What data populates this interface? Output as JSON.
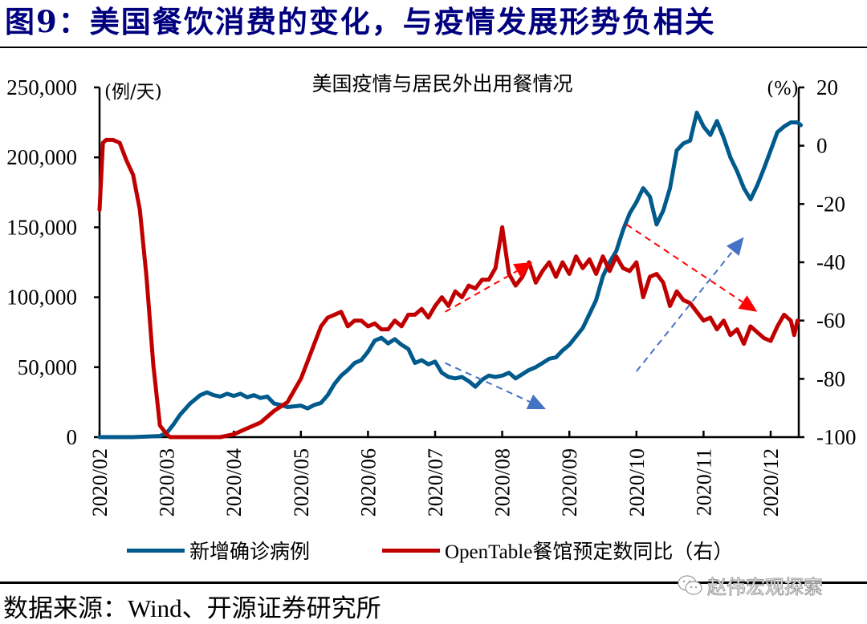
{
  "figure": {
    "title": "图9：美国餐饮消费的变化，与疫情发展形势负相关",
    "source": "数据来源：Wind、开源证券研究所",
    "watermark": "赵伟宏观探索"
  },
  "colors": {
    "title": "#00007F",
    "cases_line": "#005A8C",
    "opentable_line": "#C00000",
    "arrow_red": "#FF0000",
    "arrow_blue": "#4472C4"
  },
  "chart_data": {
    "type": "line",
    "title": "美国疫情与居民外出用餐情况",
    "xlabel": "",
    "ylabel_left": "(例/天)",
    "ylabel_right": "(%)",
    "ylim_left": [
      0,
      250000
    ],
    "ylim_right": [
      -100,
      20
    ],
    "yticks_left": [
      "250,000",
      "200,000",
      "150,000",
      "100,000",
      "50,000",
      "0"
    ],
    "yticks_right": [
      "20",
      "0",
      "-20",
      "-40",
      "-60",
      "-80",
      "-100"
    ],
    "categories": [
      "2020/02",
      "2020/03",
      "2020/04",
      "2020/05",
      "2020/06",
      "2020/07",
      "2020/08",
      "2020/09",
      "2020/10",
      "2020/11",
      "2020/12"
    ],
    "x_unit": "month index from 2020/02 (0 = 2020/02/01)",
    "x_max": 10.45,
    "legend_position": "bottom",
    "grid": false,
    "series": [
      {
        "name": "新增确诊病例",
        "axis": "left",
        "x": [
          0,
          0.5,
          0.9,
          1.0,
          1.1,
          1.2,
          1.35,
          1.5,
          1.6,
          1.7,
          1.8,
          1.9,
          2.0,
          2.1,
          2.2,
          2.3,
          2.4,
          2.5,
          2.6,
          2.7,
          2.8,
          2.9,
          3.0,
          3.1,
          3.2,
          3.3,
          3.4,
          3.5,
          3.6,
          3.7,
          3.8,
          3.9,
          4.0,
          4.1,
          4.2,
          4.3,
          4.4,
          4.5,
          4.6,
          4.7,
          4.8,
          4.9,
          5.0,
          5.1,
          5.2,
          5.3,
          5.4,
          5.5,
          5.6,
          5.7,
          5.8,
          5.9,
          6.0,
          6.1,
          6.2,
          6.3,
          6.4,
          6.5,
          6.6,
          6.7,
          6.8,
          6.9,
          7.0,
          7.1,
          7.2,
          7.3,
          7.4,
          7.5,
          7.6,
          7.7,
          7.8,
          7.9,
          8.0,
          8.1,
          8.2,
          8.3,
          8.4,
          8.5,
          8.6,
          8.7,
          8.8,
          8.9,
          9.0,
          9.1,
          9.2,
          9.3,
          9.4,
          9.5,
          9.6,
          9.7,
          9.8,
          9.9,
          10.0,
          10.1,
          10.2,
          10.3,
          10.4,
          10.45
        ],
        "values": [
          0,
          0,
          800,
          3000,
          9000,
          16000,
          24000,
          30000,
          32000,
          30000,
          29000,
          31000,
          29500,
          31000,
          28500,
          30000,
          28000,
          29000,
          24000,
          23000,
          21500,
          22000,
          22500,
          20500,
          23000,
          24500,
          30000,
          38000,
          44000,
          48000,
          53000,
          55000,
          61000,
          69000,
          71000,
          67000,
          70000,
          66000,
          63000,
          53000,
          55000,
          52000,
          54000,
          46000,
          43000,
          42000,
          43000,
          40000,
          36000,
          41000,
          44000,
          43000,
          44000,
          46000,
          42000,
          45000,
          48000,
          50000,
          53000,
          56000,
          57000,
          62000,
          66000,
          72000,
          78000,
          88000,
          98000,
          115000,
          125000,
          133000,
          148000,
          160000,
          168000,
          178000,
          172000,
          152000,
          162000,
          178000,
          205000,
          210000,
          212000,
          232000,
          222000,
          216000,
          226000,
          214000,
          200000,
          190000,
          178000,
          170000,
          180000,
          192000,
          205000,
          218000,
          222000,
          225000,
          225000,
          223000
        ],
        "color": "#005A8C"
      },
      {
        "name": "OpenTable餐馆预定数同比（右）",
        "axis": "right",
        "x": [
          0,
          0.05,
          0.1,
          0.2,
          0.3,
          0.4,
          0.5,
          0.6,
          0.7,
          0.8,
          0.9,
          1.0,
          1.05,
          1.1,
          1.2,
          1.5,
          1.8,
          2.0,
          2.2,
          2.4,
          2.6,
          2.8,
          2.9,
          3.0,
          3.1,
          3.2,
          3.3,
          3.4,
          3.5,
          3.6,
          3.7,
          3.8,
          3.9,
          4.0,
          4.1,
          4.2,
          4.3,
          4.4,
          4.5,
          4.6,
          4.7,
          4.8,
          4.9,
          5.0,
          5.1,
          5.2,
          5.3,
          5.4,
          5.5,
          5.6,
          5.7,
          5.8,
          5.9,
          6.0,
          6.1,
          6.2,
          6.3,
          6.4,
          6.5,
          6.6,
          6.7,
          6.8,
          6.9,
          7.0,
          7.1,
          7.2,
          7.3,
          7.4,
          7.5,
          7.6,
          7.7,
          7.8,
          7.9,
          8.0,
          8.1,
          8.2,
          8.3,
          8.4,
          8.5,
          8.6,
          8.7,
          8.8,
          8.9,
          9.0,
          9.1,
          9.2,
          9.3,
          9.4,
          9.5,
          9.6,
          9.7,
          9.8,
          9.9,
          10.0,
          10.1,
          10.2,
          10.3,
          10.35,
          10.4
        ],
        "values": [
          -22,
          1,
          2,
          2,
          1,
          -5,
          -10,
          -22,
          -45,
          -75,
          -96,
          -99,
          -100,
          -100,
          -100,
          -100,
          -100,
          -99,
          -97,
          -95,
          -91,
          -88,
          -84,
          -80,
          -74,
          -68,
          -62,
          -59,
          -58,
          -57,
          -62,
          -60,
          -60,
          -62,
          -61,
          -63,
          -63,
          -60,
          -62,
          -58,
          -58,
          -56,
          -59,
          -55,
          -52,
          -55,
          -50,
          -52,
          -48,
          -49,
          -46,
          -46,
          -42,
          -28,
          -44,
          -48,
          -45,
          -40,
          -47,
          -43,
          -40,
          -45,
          -40,
          -44,
          -38,
          -42,
          -39,
          -44,
          -38,
          -43,
          -38,
          -42,
          -43,
          -40,
          -52,
          -45,
          -44,
          -47,
          -55,
          -50,
          -53,
          -54,
          -57,
          -60,
          -59,
          -63,
          -60,
          -65,
          -63,
          -68,
          -62,
          -64,
          -66,
          -67,
          -62,
          -58,
          -60,
          -65,
          -60
        ],
        "color": "#C00000"
      }
    ],
    "annotations": [
      {
        "type": "dashed-arrow",
        "color": "#FF0000",
        "from": [
          5.15,
          -57
        ],
        "to": [
          6.45,
          -40
        ],
        "axis": "right"
      },
      {
        "type": "dashed-arrow",
        "color": "#4472C4",
        "from": [
          5.15,
          53000
        ],
        "to": [
          6.65,
          20000
        ],
        "axis": "left"
      },
      {
        "type": "dashed-arrow",
        "color": "#FF0000",
        "from": [
          7.85,
          -27
        ],
        "to": [
          9.8,
          -57
        ],
        "axis": "right"
      },
      {
        "type": "dashed-arrow",
        "color": "#4472C4",
        "from": [
          8.0,
          47000
        ],
        "to": [
          9.6,
          143000
        ],
        "axis": "left"
      }
    ]
  }
}
